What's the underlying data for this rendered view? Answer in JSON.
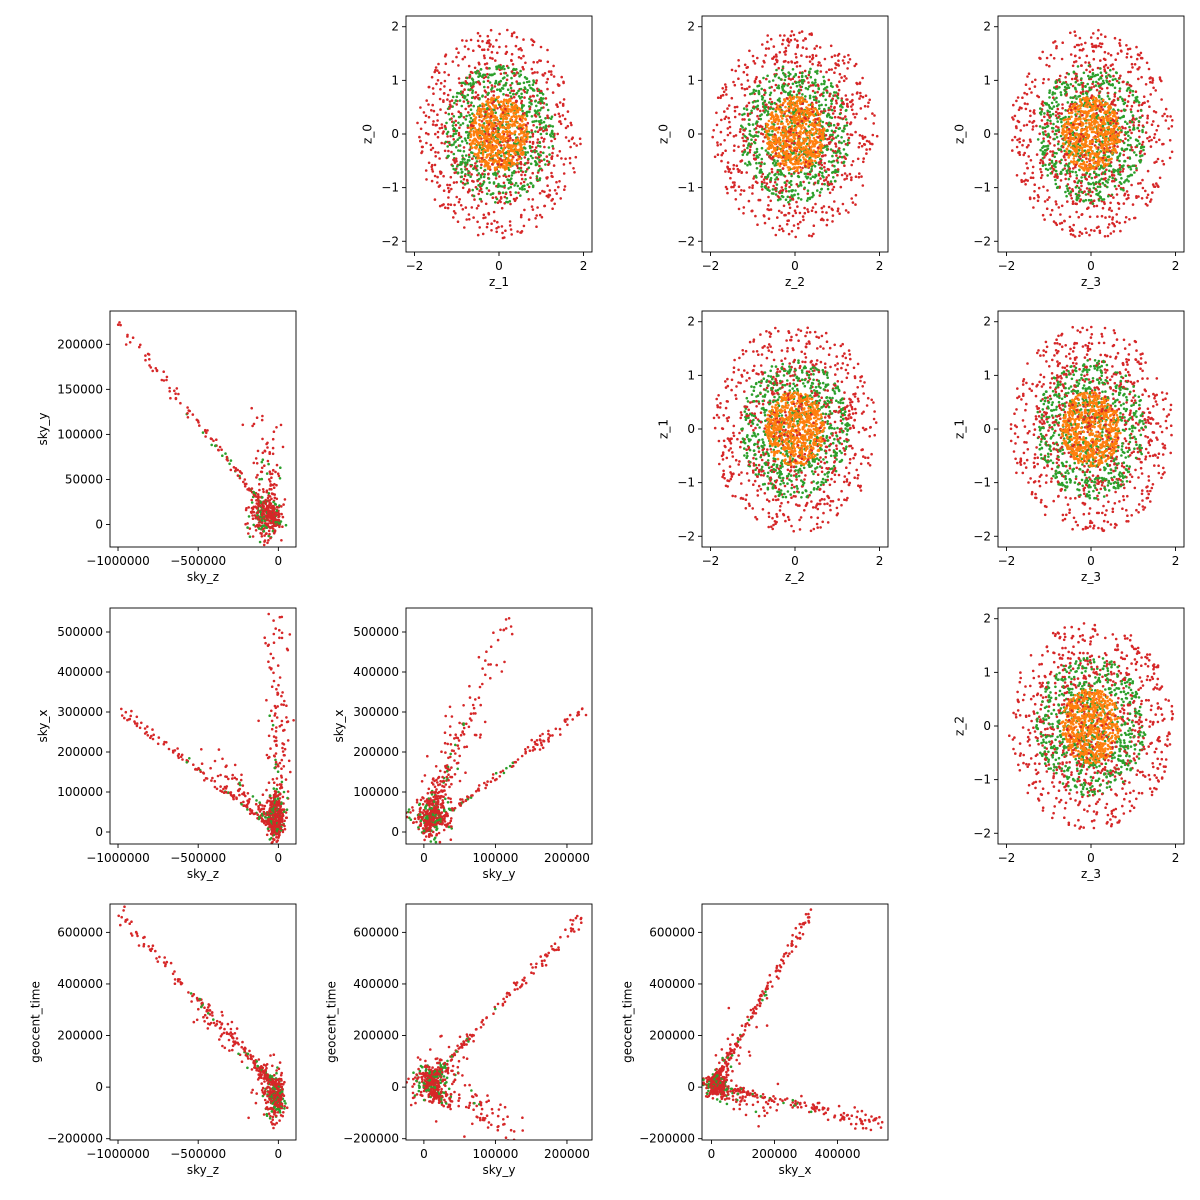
{
  "colors": {
    "inner": "#ff7f0e",
    "middle": "#2ca02c",
    "outer": "#d62728",
    "frame": "#000000",
    "background": "#ffffff"
  },
  "chart_data": [
    {
      "type": "scatter",
      "id": "z1-z0",
      "row": 0,
      "col": 1,
      "kind": "ring",
      "xlabel": "z_1",
      "ylabel": "z_0",
      "xlim": [
        -2.2,
        2.2
      ],
      "ylim": [
        -2.2,
        2.2
      ],
      "xticks": [
        -2,
        0,
        2
      ],
      "yticks": [
        -2,
        -1,
        0,
        1,
        2
      ],
      "xtick_labels": [
        "−2",
        "0",
        "2"
      ],
      "ytick_labels": [
        "−2",
        "−1",
        "0",
        "1",
        "2"
      ]
    },
    {
      "type": "scatter",
      "id": "z2-z0",
      "row": 0,
      "col": 2,
      "kind": "ring",
      "xlabel": "z_2",
      "ylabel": "z_0",
      "xlim": [
        -2.2,
        2.2
      ],
      "ylim": [
        -2.2,
        2.2
      ],
      "xticks": [
        -2,
        0,
        2
      ],
      "yticks": [
        -2,
        -1,
        0,
        1,
        2
      ],
      "xtick_labels": [
        "−2",
        "0",
        "2"
      ],
      "ytick_labels": [
        "−2",
        "−1",
        "0",
        "1",
        "2"
      ]
    },
    {
      "type": "scatter",
      "id": "z3-z0",
      "row": 0,
      "col": 3,
      "kind": "ring",
      "xlabel": "z_3",
      "ylabel": "z_0",
      "xlim": [
        -2.2,
        2.2
      ],
      "ylim": [
        -2.2,
        2.2
      ],
      "xticks": [
        -2,
        0,
        2
      ],
      "yticks": [
        -2,
        -1,
        0,
        1,
        2
      ],
      "xtick_labels": [
        "−2",
        "0",
        "2"
      ],
      "ytick_labels": [
        "−2",
        "−1",
        "0",
        "1",
        "2"
      ]
    },
    {
      "type": "scatter",
      "id": "z2-z1",
      "row": 1,
      "col": 2,
      "kind": "ring",
      "xlabel": "z_2",
      "ylabel": "z_1",
      "xlim": [
        -2.2,
        2.2
      ],
      "ylim": [
        -2.2,
        2.2
      ],
      "xticks": [
        -2,
        0,
        2
      ],
      "yticks": [
        -2,
        -1,
        0,
        1,
        2
      ],
      "xtick_labels": [
        "−2",
        "0",
        "2"
      ],
      "ytick_labels": [
        "−2",
        "−1",
        "0",
        "1",
        "2"
      ]
    },
    {
      "type": "scatter",
      "id": "z3-z1",
      "row": 1,
      "col": 3,
      "kind": "ring",
      "xlabel": "z_3",
      "ylabel": "z_1",
      "xlim": [
        -2.2,
        2.2
      ],
      "ylim": [
        -2.2,
        2.2
      ],
      "xticks": [
        -2,
        0,
        2
      ],
      "yticks": [
        -2,
        -1,
        0,
        1,
        2
      ],
      "xtick_labels": [
        "−2",
        "0",
        "2"
      ],
      "ytick_labels": [
        "−2",
        "−1",
        "0",
        "1",
        "2"
      ]
    },
    {
      "type": "scatter",
      "id": "z3-z2",
      "row": 2,
      "col": 3,
      "kind": "ring",
      "xlabel": "z_3",
      "ylabel": "z_2",
      "xlim": [
        -2.2,
        2.2
      ],
      "ylim": [
        -2.2,
        2.2
      ],
      "xticks": [
        -2,
        0,
        2
      ],
      "yticks": [
        -2,
        -1,
        0,
        1,
        2
      ],
      "xtick_labels": [
        "−2",
        "0",
        "2"
      ],
      "ytick_labels": [
        "−2",
        "−1",
        "0",
        "1",
        "2"
      ]
    },
    {
      "type": "scatter",
      "id": "skyz-skyy",
      "row": 1,
      "col": 0,
      "kind": "streak",
      "xlabel": "sky_z",
      "ylabel": "sky_y",
      "xlim": [
        -1050000,
        110000
      ],
      "ylim": [
        -25000,
        237000
      ],
      "xticks": [
        -1000000,
        -500000,
        0
      ],
      "yticks": [
        0,
        50000,
        100000,
        150000,
        200000
      ],
      "xtick_labels": [
        "−1000000",
        "−500000",
        "0"
      ],
      "ytick_labels": [
        "0",
        "50000",
        "100000",
        "150000",
        "200000"
      ],
      "cluster": [
        -80000,
        10000,
        70000,
        18000
      ],
      "streaks": [
        {
          "from": [
            0,
            0
          ],
          "to": [
            -1000000,
            225000
          ],
          "n": 160,
          "spread": 0.012
        },
        {
          "from": [
            -20000,
            10000
          ],
          "to": [
            -100000,
            115000
          ],
          "n": 70,
          "spread": 0.05
        },
        {
          "from": [
            -10000,
            5000
          ],
          "to": [
            -60000,
            100000
          ],
          "n": 50,
          "spread": 0.05
        }
      ]
    },
    {
      "type": "scatter",
      "id": "skyz-skyx",
      "row": 2,
      "col": 0,
      "kind": "streak",
      "xlabel": "sky_z",
      "ylabel": "sky_x",
      "xlim": [
        -1050000,
        110000
      ],
      "ylim": [
        -30000,
        560000
      ],
      "xticks": [
        -1000000,
        -500000,
        0
      ],
      "yticks": [
        0,
        100000,
        200000,
        300000,
        400000,
        500000
      ],
      "xtick_labels": [
        "−1000000",
        "−500000",
        "0"
      ],
      "ytick_labels": [
        "0",
        "100000",
        "200000",
        "300000",
        "400000",
        "500000"
      ],
      "cluster": [
        -20000,
        40000,
        40000,
        40000
      ],
      "streaks": [
        {
          "from": [
            0,
            0
          ],
          "to": [
            -1000000,
            310000
          ],
          "n": 150,
          "spread": 0.012
        },
        {
          "from": [
            -30000,
            20000
          ],
          "to": [
            -450000,
            200000
          ],
          "n": 80,
          "spread": 0.03
        },
        {
          "from": [
            -10000,
            0
          ],
          "to": [
            -10000,
            540000
          ],
          "n": 120,
          "spread": 0.03
        },
        {
          "from": [
            0,
            0
          ],
          "to": [
            40000,
            300000
          ],
          "n": 90,
          "spread": 0.05
        }
      ]
    },
    {
      "type": "scatter",
      "id": "skyy-skyx",
      "row": 2,
      "col": 1,
      "kind": "streak",
      "xlabel": "sky_y",
      "ylabel": "sky_x",
      "xlim": [
        -25000,
        235000
      ],
      "ylim": [
        -30000,
        560000
      ],
      "xticks": [
        0,
        100000,
        200000
      ],
      "yticks": [
        0,
        100000,
        200000,
        300000,
        400000,
        500000
      ],
      "xtick_labels": [
        "0",
        "100000",
        "200000"
      ],
      "ytick_labels": [
        "0",
        "100000",
        "200000",
        "300000",
        "400000",
        "500000"
      ],
      "cluster": [
        10000,
        40000,
        20000,
        35000
      ],
      "streaks": [
        {
          "from": [
            0,
            0
          ],
          "to": [
            225000,
            310000
          ],
          "n": 160,
          "spread": 0.012
        },
        {
          "from": [
            5000,
            20000
          ],
          "to": [
            115000,
            540000
          ],
          "n": 110,
          "spread": 0.03
        },
        {
          "from": [
            5000,
            10000
          ],
          "to": [
            60000,
            300000
          ],
          "n": 90,
          "spread": 0.05
        },
        {
          "from": [
            0,
            20000
          ],
          "to": [
            40000,
            200000
          ],
          "n": 80,
          "spread": 0.06
        }
      ]
    },
    {
      "type": "scatter",
      "id": "skyz-geocent",
      "row": 3,
      "col": 0,
      "kind": "streak",
      "xlabel": "sky_z",
      "ylabel": "geocent_time",
      "xlim": [
        -1050000,
        110000
      ],
      "ylim": [
        -205000,
        710000
      ],
      "xticks": [
        -1000000,
        -500000,
        0
      ],
      "yticks": [
        -200000,
        0,
        200000,
        400000,
        600000
      ],
      "xtick_labels": [
        "−1000000",
        "−500000",
        "0"
      ],
      "ytick_labels": [
        "−200000",
        "0",
        "200000",
        "400000",
        "600000"
      ],
      "cluster": [
        -15000,
        -40000,
        40000,
        60000
      ],
      "streaks": [
        {
          "from": [
            0,
            0
          ],
          "to": [
            -1000000,
            670000
          ],
          "n": 170,
          "spread": 0.012
        },
        {
          "from": [
            -50000,
            20000
          ],
          "to": [
            -450000,
            280000
          ],
          "n": 110,
          "spread": 0.03
        },
        {
          "from": [
            0,
            -40000
          ],
          "to": [
            -100000,
            40000
          ],
          "n": 90,
          "spread": 0.05
        }
      ]
    },
    {
      "type": "scatter",
      "id": "skyy-geocent",
      "row": 3,
      "col": 1,
      "kind": "streak",
      "xlabel": "sky_y",
      "ylabel": "geocent_time",
      "xlim": [
        -25000,
        235000
      ],
      "ylim": [
        -205000,
        710000
      ],
      "xticks": [
        0,
        100000,
        200000
      ],
      "yticks": [
        -200000,
        0,
        200000,
        400000,
        600000
      ],
      "xtick_labels": [
        "0",
        "100000",
        "200000"
      ],
      "ytick_labels": [
        "−200000",
        "0",
        "200000",
        "400000",
        "600000"
      ],
      "cluster": [
        12000,
        20000,
        18000,
        55000
      ],
      "streaks": [
        {
          "from": [
            0,
            0
          ],
          "to": [
            225000,
            670000
          ],
          "n": 170,
          "spread": 0.012
        },
        {
          "from": [
            10000,
            -20000
          ],
          "to": [
            120000,
            -140000
          ],
          "n": 130,
          "spread": 0.05
        },
        {
          "from": [
            5000,
            40000
          ],
          "to": [
            60000,
            150000
          ],
          "n": 60,
          "spread": 0.05
        }
      ]
    },
    {
      "type": "scatter",
      "id": "skyx-geocent",
      "row": 3,
      "col": 2,
      "kind": "streak",
      "xlabel": "sky_x",
      "ylabel": "geocent_time",
      "xlim": [
        -30000,
        560000
      ],
      "ylim": [
        -205000,
        710000
      ],
      "xticks": [
        0,
        200000,
        400000
      ],
      "yticks": [
        -200000,
        0,
        200000,
        400000,
        600000
      ],
      "xtick_labels": [
        "0",
        "200000",
        "400000"
      ],
      "ytick_labels": [
        "−200000",
        "0",
        "200000",
        "400000",
        "600000"
      ],
      "cluster": [
        15000,
        5000,
        25000,
        30000
      ],
      "streaks": [
        {
          "from": [
            0,
            0
          ],
          "to": [
            310000,
            670000
          ],
          "n": 170,
          "spread": 0.012
        },
        {
          "from": [
            0,
            10000
          ],
          "to": [
            540000,
            -140000
          ],
          "n": 170,
          "spread": 0.015
        },
        {
          "from": [
            20000,
            30000
          ],
          "to": [
            100000,
            220000
          ],
          "n": 70,
          "spread": 0.05
        },
        {
          "from": [
            20000,
            -10000
          ],
          "to": [
            200000,
            -70000
          ],
          "n": 70,
          "spread": 0.04
        }
      ]
    }
  ]
}
